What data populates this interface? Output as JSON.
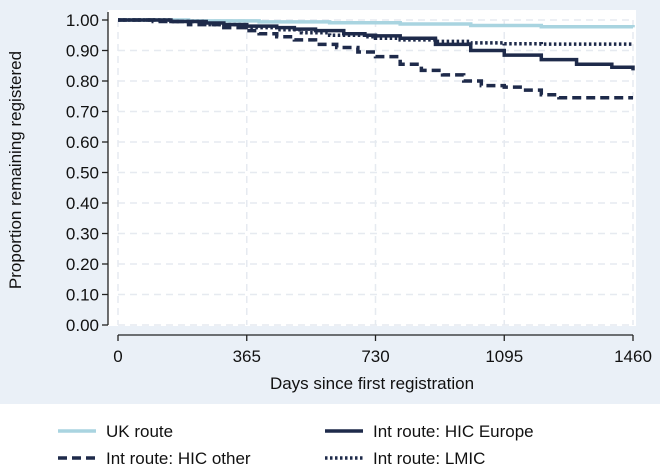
{
  "chart_data": {
    "type": "line",
    "title": "",
    "xlabel": "Days since first registration",
    "ylabel": "Proportion remaining registered",
    "xlim": [
      0,
      1460
    ],
    "ylim": [
      0,
      1
    ],
    "x_ticks": [
      "0",
      "365",
      "730",
      "1095",
      "1460"
    ],
    "x_tick_values": [
      0,
      365,
      730,
      1095,
      1460
    ],
    "y_ticks": [
      "0.00",
      "0.10",
      "0.20",
      "0.30",
      "0.40",
      "0.50",
      "0.60",
      "0.70",
      "0.80",
      "0.90",
      "1.00"
    ],
    "y_tick_values": [
      0,
      0.1,
      0.2,
      0.3,
      0.4,
      0.5,
      0.6,
      0.7,
      0.8,
      0.9,
      1.0
    ],
    "grid": true,
    "legend_position": "bottom",
    "series": [
      {
        "name": "UK route",
        "color": "#a9d4e0",
        "style": "solid",
        "points": [
          [
            0,
            1.0
          ],
          [
            200,
            0.997
          ],
          [
            400,
            0.994
          ],
          [
            600,
            0.991
          ],
          [
            800,
            0.987
          ],
          [
            1000,
            0.982
          ],
          [
            1200,
            0.978
          ],
          [
            1460,
            0.976
          ]
        ]
      },
      {
        "name": "Int route: HIC Europe",
        "color": "#1e2a4a",
        "style": "solid",
        "points": [
          [
            0,
            1.0
          ],
          [
            150,
            0.995
          ],
          [
            250,
            0.99
          ],
          [
            300,
            0.985
          ],
          [
            365,
            0.98
          ],
          [
            450,
            0.975
          ],
          [
            500,
            0.97
          ],
          [
            560,
            0.965
          ],
          [
            640,
            0.955
          ],
          [
            700,
            0.95
          ],
          [
            730,
            0.948
          ],
          [
            800,
            0.94
          ],
          [
            900,
            0.92
          ],
          [
            1000,
            0.9
          ],
          [
            1095,
            0.885
          ],
          [
            1200,
            0.87
          ],
          [
            1300,
            0.855
          ],
          [
            1400,
            0.845
          ],
          [
            1460,
            0.835
          ]
        ]
      },
      {
        "name": "Int route: HIC other",
        "color": "#1e2a4a",
        "style": "dashed",
        "points": [
          [
            0,
            1.0
          ],
          [
            100,
            0.995
          ],
          [
            200,
            0.985
          ],
          [
            300,
            0.975
          ],
          [
            365,
            0.965
          ],
          [
            400,
            0.955
          ],
          [
            450,
            0.945
          ],
          [
            500,
            0.935
          ],
          [
            560,
            0.92
          ],
          [
            620,
            0.91
          ],
          [
            680,
            0.895
          ],
          [
            730,
            0.88
          ],
          [
            800,
            0.855
          ],
          [
            860,
            0.835
          ],
          [
            920,
            0.82
          ],
          [
            980,
            0.8
          ],
          [
            1030,
            0.785
          ],
          [
            1095,
            0.78
          ],
          [
            1150,
            0.77
          ],
          [
            1200,
            0.755
          ],
          [
            1250,
            0.745
          ],
          [
            1460,
            0.745
          ]
        ]
      },
      {
        "name": "Int route: LMIC",
        "color": "#1e2a4a",
        "style": "dotted",
        "points": [
          [
            0,
            1.0
          ],
          [
            150,
            0.995
          ],
          [
            250,
            0.985
          ],
          [
            365,
            0.975
          ],
          [
            450,
            0.968
          ],
          [
            520,
            0.958
          ],
          [
            600,
            0.95
          ],
          [
            700,
            0.945
          ],
          [
            730,
            0.94
          ],
          [
            800,
            0.935
          ],
          [
            900,
            0.93
          ],
          [
            1000,
            0.925
          ],
          [
            1095,
            0.922
          ],
          [
            1200,
            0.921
          ],
          [
            1460,
            0.92
          ]
        ]
      }
    ]
  }
}
